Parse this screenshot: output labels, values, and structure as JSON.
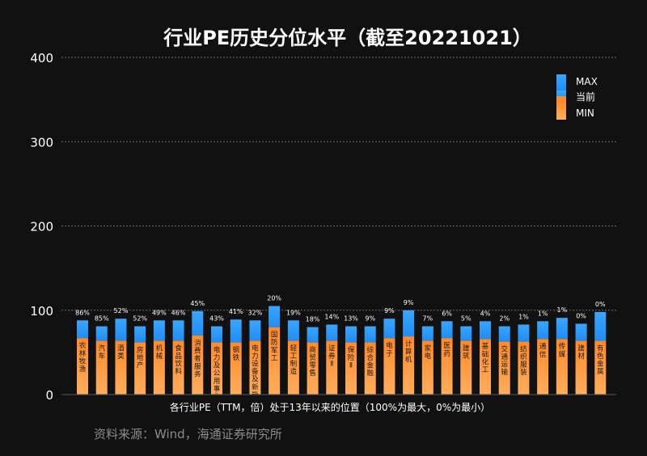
{
  "source_note": "资料来源：Wind，海通证券研究所",
  "legend": {
    "max_label": "MAX",
    "current_label": "当前",
    "min_label": "MIN",
    "placement": "top-right"
  },
  "colors": {
    "background": "#111111",
    "max_segment": "#2f9bff",
    "min_segment": "#ff9a3c",
    "axis_text": "#ffffff",
    "gridline": "#6a6a6a",
    "note_text": "#8c8c8c"
  },
  "chart_data": {
    "type": "bar",
    "title": "行业PE历史分位水平（截至20221021）",
    "xlabel": "各行业PE（TTM，倍）处于13年以来的位置（100%为最大，0%为最小）",
    "ylabel": "",
    "ylim": [
      0,
      400
    ],
    "yticks": [
      0,
      100,
      200,
      300,
      400
    ],
    "grid": true,
    "stacked": true,
    "categories": [
      "农林牧渔",
      "汽车",
      "酒类",
      "房地产",
      "机械",
      "食品饮料",
      "消费者服务",
      "电力及公用事业",
      "钢铁",
      "电力设备及新能源",
      "国防军工",
      "轻工制造",
      "商贸零售",
      "证券Ⅱ",
      "保险Ⅱ",
      "综合金融",
      "电子",
      "计算机",
      "家电",
      "医药",
      "建筑",
      "基础化工",
      "交通运输",
      "纺织服装",
      "通信",
      "传媒",
      "建材",
      "有色金属"
    ],
    "percentile_labels": [
      "86%",
      "85%",
      "52%",
      "52%",
      "49%",
      "46%",
      "45%",
      "43%",
      "41%",
      "32%",
      "20%",
      "19%",
      "18%",
      "14%",
      "13%",
      "9%",
      "9%",
      "9%",
      "7%",
      "6%",
      "5%",
      "4%",
      "2%",
      "1%",
      "1%",
      "1%",
      "0%",
      "0%"
    ],
    "series": [
      {
        "name": "MIN",
        "values": [
          67,
          64,
          64,
          62,
          64,
          64,
          70,
          62,
          62,
          64,
          80,
          64,
          62,
          64,
          62,
          62,
          67,
          69,
          64,
          67,
          64,
          66,
          63,
          63,
          66,
          66,
          64,
          64
        ]
      },
      {
        "name": "MAX",
        "values": [
          21,
          17,
          26,
          19,
          24,
          24,
          29,
          19,
          27,
          24,
          25,
          24,
          18,
          19,
          19,
          19,
          23,
          31,
          17,
          20,
          17,
          21,
          18,
          20,
          21,
          25,
          20,
          34
        ]
      }
    ]
  }
}
